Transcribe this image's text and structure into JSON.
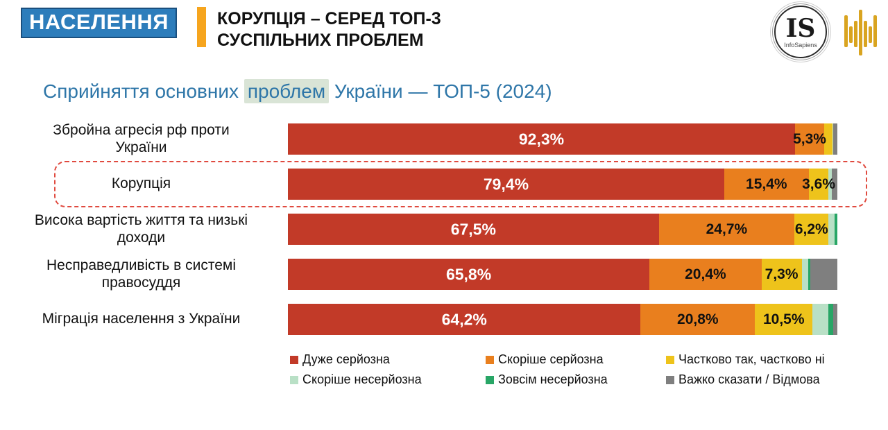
{
  "header": {
    "badge": "НАСЕЛЕННЯ",
    "title_line1": "КОРУПЦІЯ – СЕРЕД ТОП-3",
    "title_line2": "СУСПІЛЬНИХ ПРОБЛЕМ",
    "logo": {
      "initials": "IS",
      "name": "InfoSapiens"
    }
  },
  "chart_title": {
    "prefix": "Сприйняття основних ",
    "highlight": "проблем",
    "suffix": " України — ТОП-5 (2024)"
  },
  "colors": {
    "badge_blue": "#2d7dbb",
    "header_accent_orange": "#f6a51e",
    "title_blue": "#2e76a8",
    "highlight_frame_red": "#e04a3f",
    "title_word_highlight": "#d9e4d6"
  },
  "chart_data": {
    "type": "bar",
    "stacked": true,
    "orientation": "horizontal",
    "title": "Сприйняття основних проблем України — ТОП-5 (2024)",
    "xlim": [
      0,
      100
    ],
    "grid": false,
    "legend_position": "bottom",
    "highlighted_category_index": 1,
    "categories": [
      "Збройна агресія рф проти України",
      "Корупція",
      "Висока вартість життя та низькі доходи",
      "Несправедливість в системі правосуддя",
      "Міграція населення з України"
    ],
    "series": [
      {
        "name": "Дуже серйозна",
        "color": "#c23a28",
        "values": [
          92.3,
          79.4,
          67.5,
          65.8,
          64.2
        ]
      },
      {
        "name": "Скоріше серйозна",
        "color": "#e97f1e",
        "values": [
          5.3,
          15.4,
          24.7,
          20.4,
          20.8
        ]
      },
      {
        "name": "Частково так, частково ні",
        "color": "#eec31b",
        "values": [
          1.5,
          3.6,
          6.2,
          7.3,
          10.5
        ]
      },
      {
        "name": "Скоріше несерйозна",
        "color": "#b9e0c6",
        "values": [
          0.1,
          0.6,
          1.1,
          1.2,
          2.8
        ]
      },
      {
        "name": "Зовсім несерйозна",
        "color": "#28a666",
        "values": [
          0.0,
          0.0,
          0.5,
          0.4,
          0.9
        ]
      },
      {
        "name": "Важко сказати / Відмова",
        "color": "#7f7f7f",
        "values": [
          0.8,
          1.0,
          0.0,
          4.9,
          0.8
        ]
      }
    ],
    "value_labels": [
      [
        "92,3%",
        "5,3%",
        null,
        null,
        null,
        null
      ],
      [
        "79,4%",
        "15,4%",
        "3,6%",
        null,
        null,
        null
      ],
      [
        "67,5%",
        "24,7%",
        "6,2%",
        null,
        null,
        null
      ],
      [
        "65,8%",
        "20,4%",
        "7,3%",
        null,
        null,
        null
      ],
      [
        "64,2%",
        "20,8%",
        "10,5%",
        null,
        null,
        null
      ]
    ]
  }
}
